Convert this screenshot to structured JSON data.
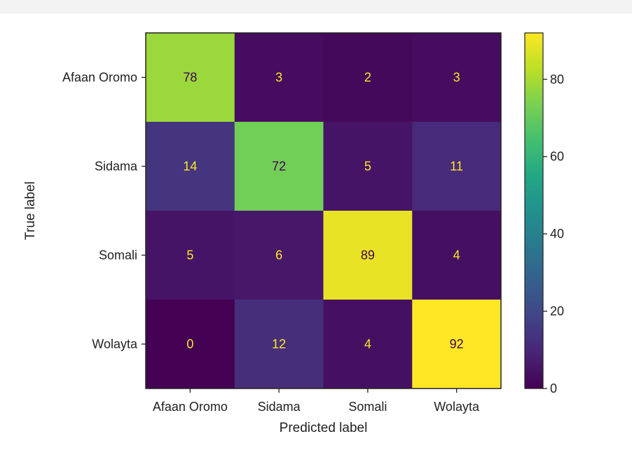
{
  "chart_data": {
    "type": "heatmap",
    "title": "",
    "xlabel": "Predicted label",
    "ylabel": "True label",
    "x_categories": [
      "Afaan Oromo",
      "Sidama",
      "Somali",
      "Wolayta"
    ],
    "y_categories": [
      "Afaan Oromo",
      "Sidama",
      "Somali",
      "Wolayta"
    ],
    "values": [
      [
        78,
        3,
        2,
        3
      ],
      [
        14,
        72,
        5,
        11
      ],
      [
        5,
        6,
        89,
        4
      ],
      [
        0,
        12,
        4,
        92
      ]
    ],
    "colormap": "viridis",
    "colorbar": {
      "range": [
        0,
        92
      ],
      "ticks": [
        0,
        20,
        40,
        60,
        80
      ]
    },
    "text_color_light": "#fde725",
    "text_color_dark": "#440154"
  }
}
